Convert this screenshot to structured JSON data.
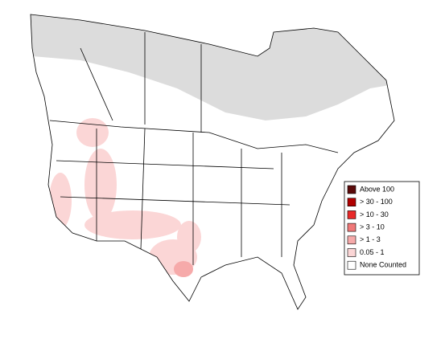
{
  "legend": {
    "items": [
      {
        "label": "Above 100",
        "color": "#5a0a0a"
      },
      {
        "label": "> 30 - 100",
        "color": "#b00000"
      },
      {
        "label": "> 10 - 30",
        "color": "#e82828"
      },
      {
        "label": "> 3 - 10",
        "color": "#f07878"
      },
      {
        "label": "> 1 - 3",
        "color": "#f6aaaa"
      },
      {
        "label": "0.05 - 1",
        "color": "#fbd6d6"
      },
      {
        "label": "None Counted",
        "color": "#ffffff"
      }
    ]
  }
}
